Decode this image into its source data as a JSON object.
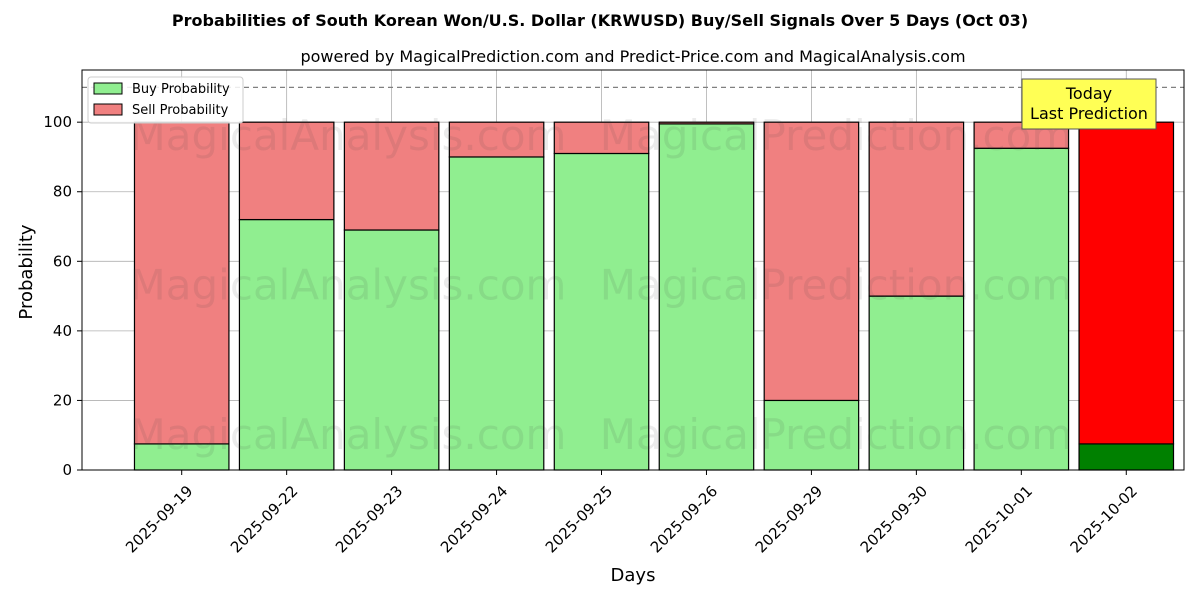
{
  "chart_data": {
    "type": "bar",
    "stacked": true,
    "title": "Probabilities of South Korean Won/U.S. Dollar (KRWUSD) Buy/Sell Signals Over 5 Days (Oct 03)",
    "subtitle": "powered by MagicalPrediction.com and Predict-Price.com and MagicalAnalysis.com",
    "xlabel": "Days",
    "ylabel": "Probability",
    "ylim": [
      0,
      115
    ],
    "yticks": [
      0,
      20,
      40,
      60,
      80,
      100
    ],
    "grid": true,
    "legend_position": "top-left",
    "reference_line": 110,
    "categories": [
      "2025-09-19",
      "2025-09-22",
      "2025-09-23",
      "2025-09-24",
      "2025-09-25",
      "2025-09-26",
      "2025-09-29",
      "2025-09-30",
      "2025-10-01",
      "2025-10-02"
    ],
    "series": [
      {
        "name": "Buy Probability",
        "color": "#90ee90",
        "highlight_color": "#008000",
        "values": [
          7.5,
          72,
          69,
          90,
          91,
          99.5,
          20,
          50,
          92.5,
          7.5
        ]
      },
      {
        "name": "Sell Probability",
        "color": "#f08080",
        "highlight_color": "#ff0000",
        "values": [
          92.5,
          28,
          31,
          10,
          9,
          0.5,
          80,
          50,
          7.5,
          92.5
        ]
      }
    ],
    "highlight_index": 9,
    "annotation": {
      "lines": [
        "Today",
        "Last Prediction"
      ],
      "color": "#ffff55"
    },
    "watermarks": [
      "MagicalAnalysis.com",
      "MagicalPrediction.com"
    ]
  }
}
